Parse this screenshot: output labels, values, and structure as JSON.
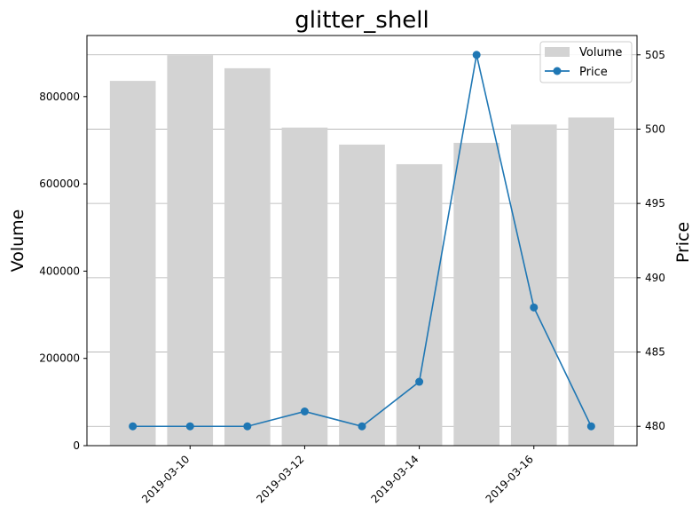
{
  "chart_data": {
    "type": "bar+line",
    "title": "glitter_shell",
    "x": [
      "2019-03-09",
      "2019-03-10",
      "2019-03-11",
      "2019-03-12",
      "2019-03-13",
      "2019-03-14",
      "2019-03-15",
      "2019-03-16",
      "2019-03-17"
    ],
    "x_tick_labels": [
      "2019-03-10",
      "2019-03-12",
      "2019-03-14",
      "2019-03-16"
    ],
    "series": [
      {
        "name": "Volume",
        "type": "bar",
        "axis": "left",
        "color": "#d3d3d3",
        "values": [
          836000,
          895000,
          865000,
          729000,
          690000,
          645000,
          694000,
          736000,
          752000
        ]
      },
      {
        "name": "Price",
        "type": "line",
        "axis": "right",
        "color": "#1f77b4",
        "marker": "circle",
        "values": [
          480,
          480,
          480,
          481,
          480,
          483,
          505,
          488,
          480
        ]
      }
    ],
    "ylabel_left": "Volume",
    "ylabel_right": "Price",
    "ylim_left": [
      0,
      940000
    ],
    "ylim_right": [
      478.7,
      506.3
    ],
    "yticks_left": [
      0,
      200000,
      400000,
      600000,
      800000
    ],
    "yticks_right": [
      480,
      485,
      490,
      495,
      500,
      505
    ],
    "xlim": [
      "2019-03-08T04:48",
      "2019-03-17T19:12"
    ],
    "grid": "horizontal-right-axis",
    "legend_position": "top-right"
  }
}
